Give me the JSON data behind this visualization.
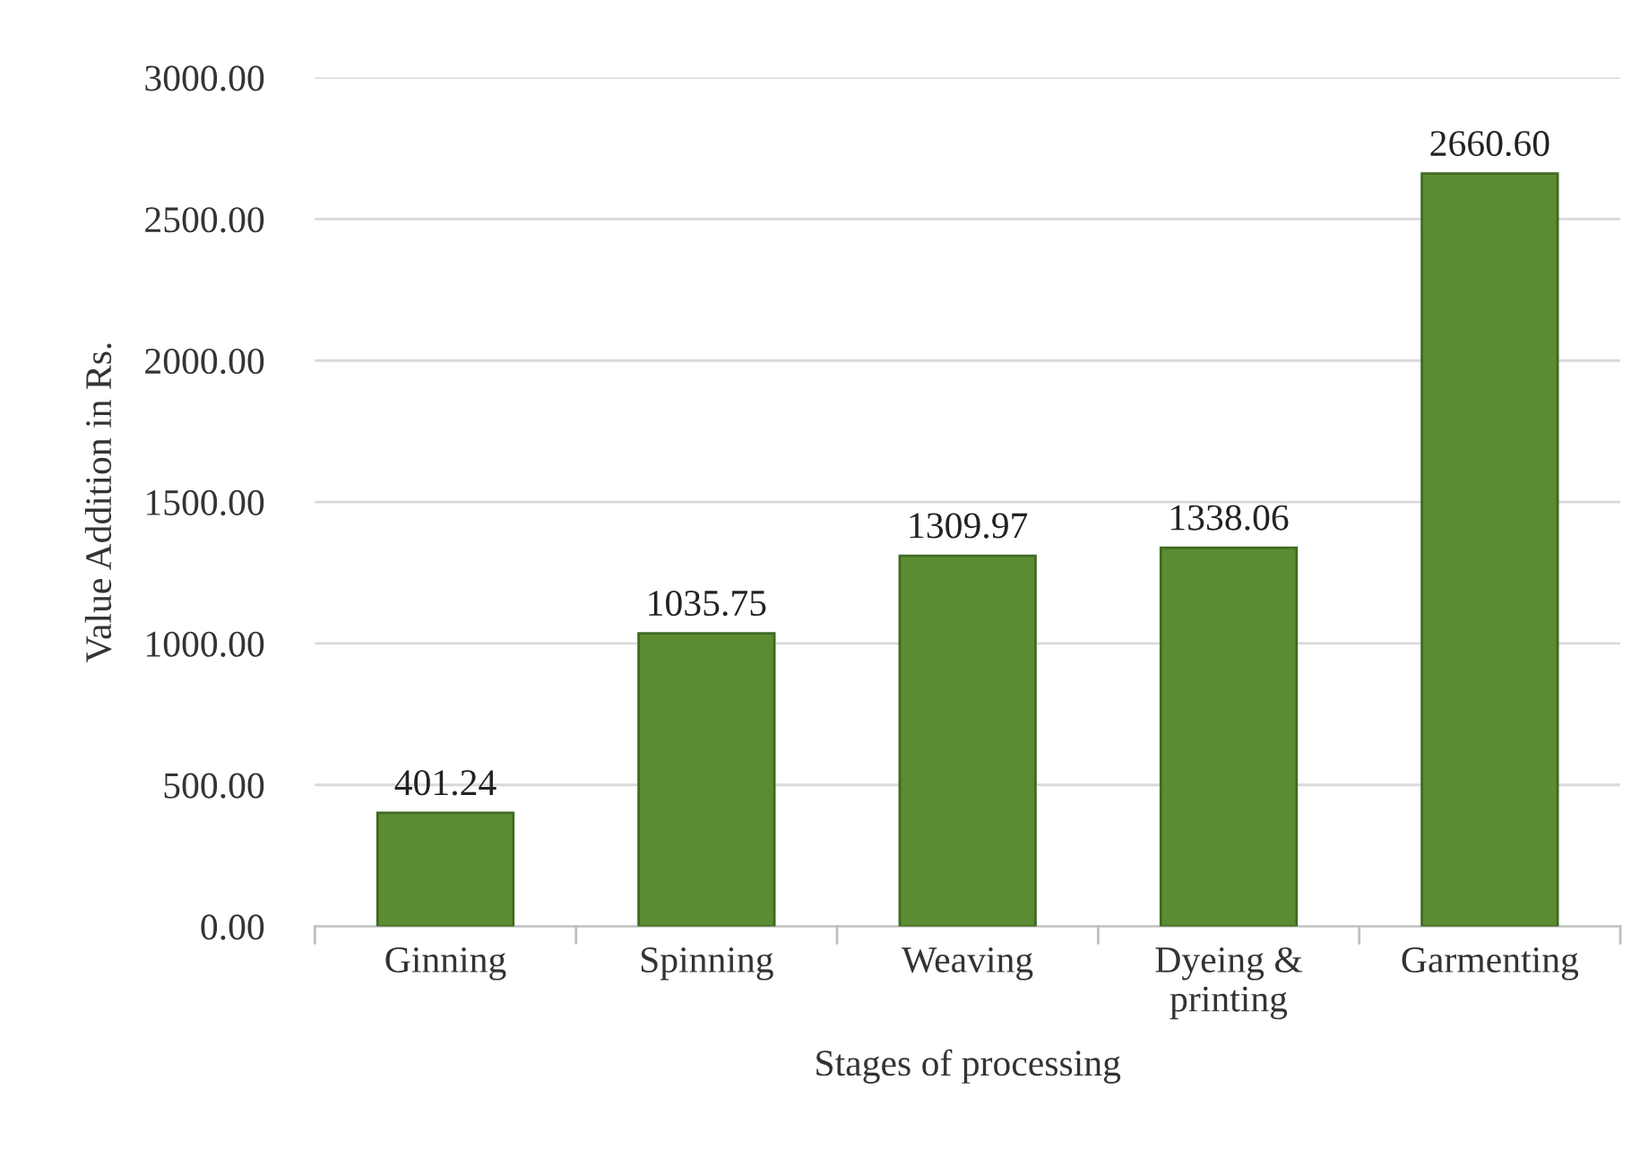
{
  "chart_data": {
    "type": "bar",
    "xlabel": "Stages of processing",
    "ylabel": "Value Addition in Rs.",
    "categories": [
      "Ginning",
      "Spinning",
      "Weaving",
      "Dyeing &\nprinting",
      "Garmenting"
    ],
    "values": [
      401.24,
      1035.75,
      1309.97,
      1338.06,
      2660.6
    ],
    "value_labels": [
      "401.24",
      "1035.75",
      "1309.97",
      "1338.06",
      "2660.60"
    ],
    "color": "#5b8c32",
    "ylim": [
      0,
      3000
    ],
    "yticks": [
      {
        "value": 0,
        "label": "0.00"
      },
      {
        "value": 500,
        "label": "500.00"
      },
      {
        "value": 1000,
        "label": "1000.00"
      },
      {
        "value": 1500,
        "label": "1500.00"
      },
      {
        "value": 2000,
        "label": "2000.00"
      },
      {
        "value": 2500,
        "label": "2500.00"
      },
      {
        "value": 3000,
        "label": "3000.00"
      }
    ],
    "grid": "y"
  }
}
